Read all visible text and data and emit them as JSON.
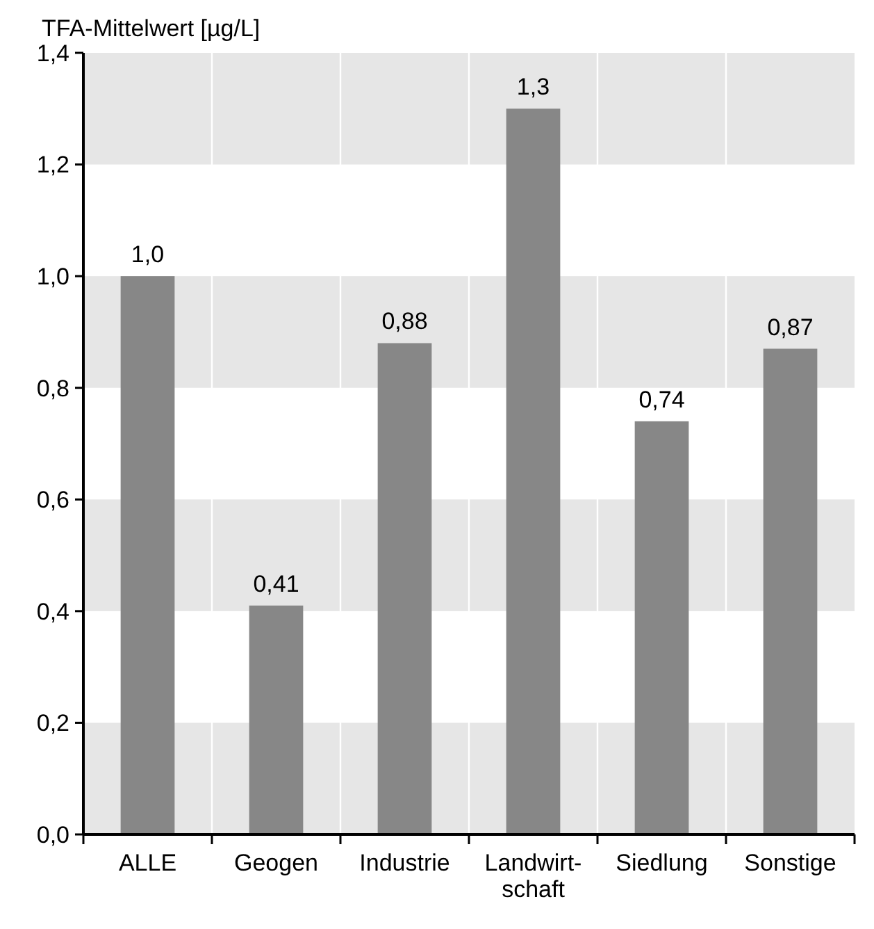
{
  "chart_data": {
    "type": "bar",
    "ylabel": "TFA-Mittelwert [µg/L]",
    "categories": [
      "ALLE",
      "Geogen",
      "Industrie",
      "Landwirt-\nschaft",
      "Siedlung",
      "Sonstige"
    ],
    "values": [
      1.0,
      0.41,
      0.88,
      1.3,
      0.74,
      0.87
    ],
    "value_labels": [
      "1,0",
      "0,41",
      "0,88",
      "1,3",
      "0,74",
      "0,87"
    ],
    "color": "#878787",
    "ylim": [
      0,
      1.4
    ],
    "yticks": [
      {
        "value": 0,
        "label": "0,0"
      },
      {
        "value": 0.2,
        "label": "0,2"
      },
      {
        "value": 0.4,
        "label": "0,4"
      },
      {
        "value": 0.6,
        "label": "0,6"
      },
      {
        "value": 0.8,
        "label": "0,8"
      },
      {
        "value": 1.0,
        "label": "1,0"
      },
      {
        "value": 1.2,
        "label": "1,2"
      },
      {
        "value": 1.4,
        "label": "1,4"
      }
    ],
    "grid": true
  }
}
